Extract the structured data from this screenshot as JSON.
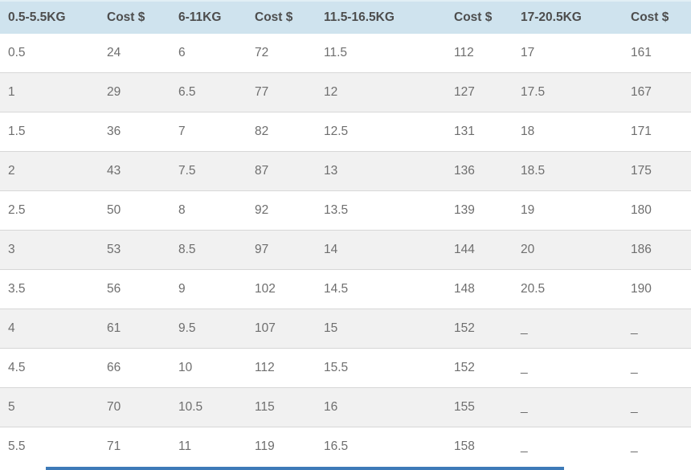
{
  "table": {
    "columns": [
      "0.5-5.5KG",
      "Cost $",
      "6-11KG",
      "Cost $",
      "11.5-16.5KG",
      "Cost $",
      "17-20.5KG",
      "Cost $"
    ],
    "rows": [
      [
        "0.5",
        "24",
        "6",
        "72",
        "11.5",
        "112",
        "17",
        "161"
      ],
      [
        "1",
        "29",
        "6.5",
        "77",
        "12",
        "127",
        "17.5",
        "167"
      ],
      [
        "1.5",
        "36",
        "7",
        "82",
        "12.5",
        "131",
        "18",
        "171"
      ],
      [
        "2",
        "43",
        "7.5",
        "87",
        "13",
        "136",
        "18.5",
        "175"
      ],
      [
        "2.5",
        "50",
        "8",
        "92",
        "13.5",
        "139",
        "19",
        "180"
      ],
      [
        "3",
        "53",
        "8.5",
        "97",
        "14",
        "144",
        "20",
        "186"
      ],
      [
        "3.5",
        "56",
        "9",
        "102",
        "14.5",
        "148",
        "20.5",
        "190"
      ],
      [
        "4",
        "61",
        "9.5",
        "107",
        "15",
        "152",
        "_",
        "_"
      ],
      [
        "4.5",
        "66",
        "10",
        "112",
        "15.5",
        "152",
        "_",
        "_"
      ],
      [
        "5",
        "70",
        "10.5",
        "115",
        "16",
        "155",
        "_",
        "_"
      ],
      [
        "5.5",
        "71",
        "11",
        "119",
        "16.5",
        "158",
        "_",
        "_"
      ]
    ]
  },
  "colors": {
    "header_bg": "#cfe3ee",
    "header_text": "#4d4d4d",
    "body_text": "#6e6e6e",
    "row_alt_bg": "#f1f1f1",
    "row_border": "#d7d7d7",
    "bottom_bar": "#3d7ab8"
  },
  "chart_data": {
    "type": "table",
    "title": "Shipping cost by weight (KG) table",
    "columns": [
      "0.5-5.5KG",
      "Cost $",
      "6-11KG",
      "Cost $",
      "11.5-16.5KG",
      "Cost $",
      "17-20.5KG",
      "Cost $"
    ],
    "series": [
      {
        "name": "0.5-5.5KG weights",
        "values": [
          0.5,
          1,
          1.5,
          2,
          2.5,
          3,
          3.5,
          4,
          4.5,
          5,
          5.5
        ]
      },
      {
        "name": "0.5-5.5KG cost $",
        "values": [
          24,
          29,
          36,
          43,
          50,
          53,
          56,
          61,
          66,
          70,
          71
        ]
      },
      {
        "name": "6-11KG weights",
        "values": [
          6,
          6.5,
          7,
          7.5,
          8,
          8.5,
          9,
          9.5,
          10,
          10.5,
          11
        ]
      },
      {
        "name": "6-11KG cost $",
        "values": [
          72,
          77,
          82,
          87,
          92,
          97,
          102,
          107,
          112,
          115,
          119
        ]
      },
      {
        "name": "11.5-16.5KG weights",
        "values": [
          11.5,
          12,
          12.5,
          13,
          13.5,
          14,
          14.5,
          15,
          15.5,
          16,
          16.5
        ]
      },
      {
        "name": "11.5-16.5KG cost $",
        "values": [
          112,
          127,
          131,
          136,
          139,
          144,
          148,
          152,
          152,
          155,
          158
        ]
      },
      {
        "name": "17-20.5KG weights",
        "values": [
          17,
          17.5,
          18,
          18.5,
          19,
          20,
          20.5,
          null,
          null,
          null,
          null
        ]
      },
      {
        "name": "17-20.5KG cost $",
        "values": [
          161,
          167,
          171,
          175,
          180,
          186,
          190,
          null,
          null,
          null,
          null
        ]
      }
    ],
    "missing_value_marker": "_",
    "layout": {
      "zebra_striping": true,
      "header_background": "#cfe3ee",
      "rows": 11,
      "columns": 8
    }
  }
}
